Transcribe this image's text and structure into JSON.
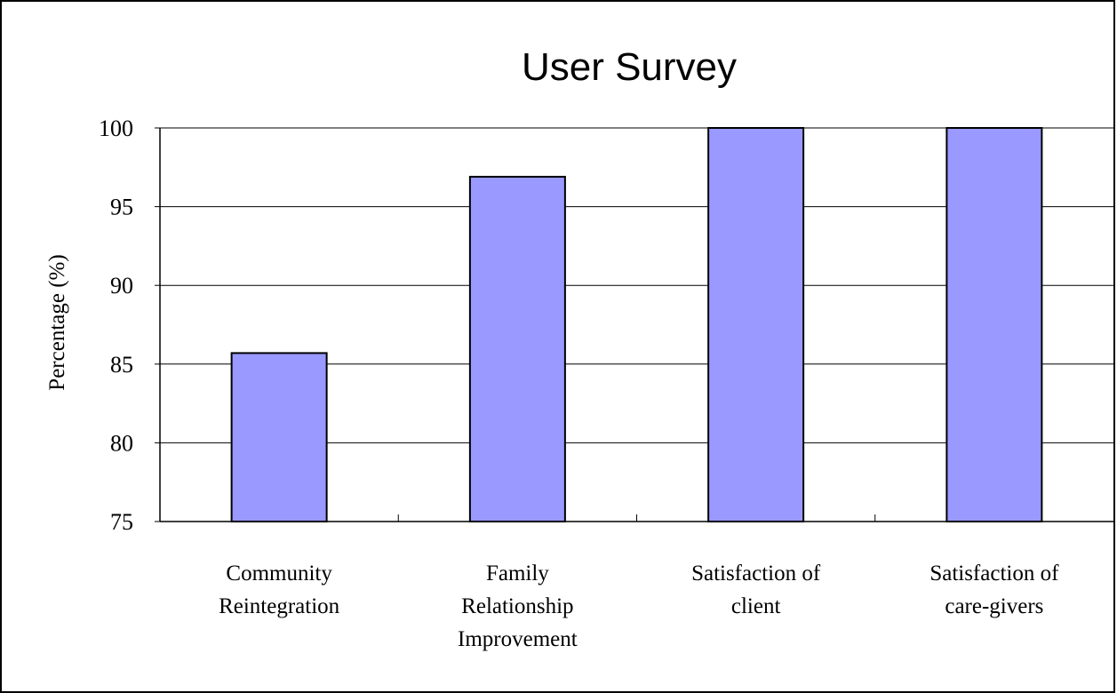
{
  "chart_data": {
    "type": "bar",
    "title": "User Survey",
    "ylabel": "Percentage (%)",
    "xlabel": "",
    "categories": [
      [
        "Community",
        "Reintegration"
      ],
      [
        "Family",
        "Relationship",
        "Improvement"
      ],
      [
        "Satisfaction of",
        "client"
      ],
      [
        "Satisfaction of",
        "care-givers"
      ]
    ],
    "values": [
      85.7,
      96.9,
      100,
      100
    ],
    "ylim": [
      75,
      100
    ],
    "yticks": [
      75,
      80,
      85,
      90,
      95,
      100
    ],
    "grid": true,
    "legend": "none",
    "colors": {
      "bar_fill": "#9999ff",
      "bar_stroke": "#000000",
      "grid": "#000000"
    }
  }
}
